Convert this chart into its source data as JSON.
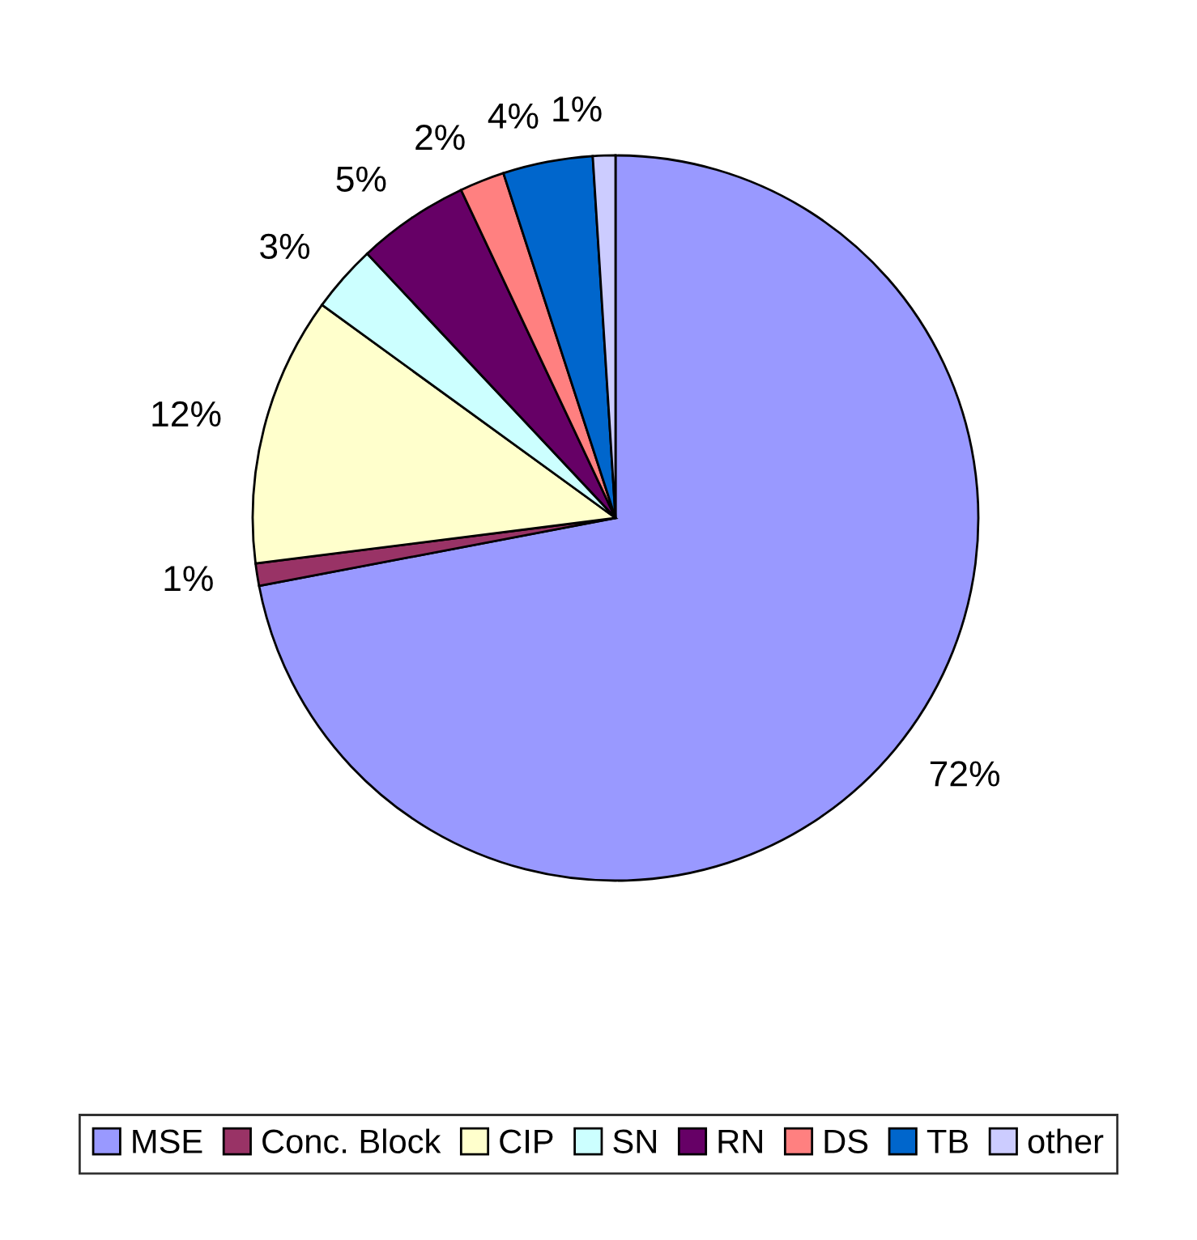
{
  "chart_data": {
    "type": "pie",
    "categories": [
      "MSE",
      "Conc. Block",
      "CIP",
      "SN",
      "RN",
      "DS",
      "TB",
      "other"
    ],
    "values": [
      72,
      1,
      12,
      3,
      5,
      2,
      4,
      1
    ],
    "value_labels": [
      "72%",
      "1%",
      "12%",
      "3%",
      "5%",
      "2%",
      "4%",
      "1%"
    ],
    "colors": [
      "#9999ff",
      "#993366",
      "#ffffcc",
      "#ccffff",
      "#660066",
      "#ff8080",
      "#0066cc",
      "#ccccff"
    ],
    "legend": "bottom"
  }
}
